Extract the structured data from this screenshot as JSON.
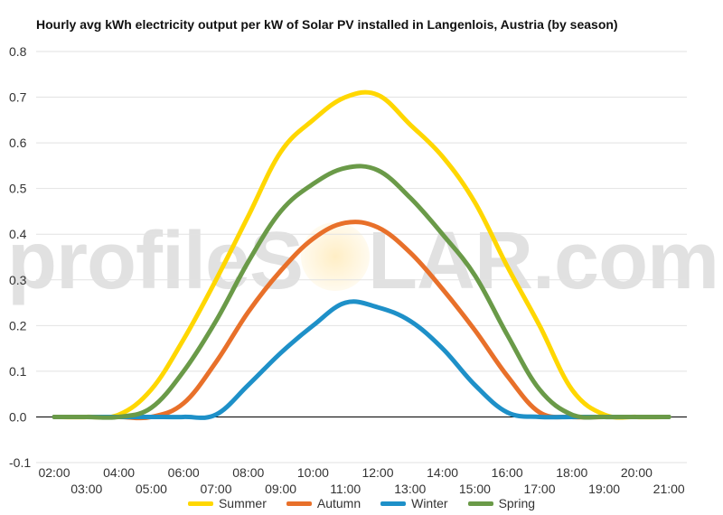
{
  "title": "Hourly avg kWh electricity output per kW of Solar PV installed in Langenlois, Austria (by season)",
  "watermark": {
    "left": "profileS",
    "right": "LAR.com"
  },
  "chart_data": {
    "type": "line",
    "title": "Hourly avg kWh electricity output per kW of Solar PV installed in Langenlois, Austria (by season)",
    "xlabel": "",
    "ylabel": "",
    "ylim": [
      -0.1,
      0.8
    ],
    "yticks": [
      "-0.1",
      "0.0",
      "0.1",
      "0.2",
      "0.3",
      "0.4",
      "0.5",
      "0.6",
      "0.7",
      "0.8"
    ],
    "x": [
      "02:00",
      "03:00",
      "04:00",
      "05:00",
      "06:00",
      "07:00",
      "08:00",
      "09:00",
      "10:00",
      "11:00",
      "12:00",
      "13:00",
      "14:00",
      "15:00",
      "16:00",
      "17:00",
      "18:00",
      "19:00",
      "20:00",
      "21:00"
    ],
    "grid": true,
    "legend": "bottom",
    "series": [
      {
        "name": "Summer",
        "color": "#FFD700",
        "values": [
          0,
          0,
          0.005,
          0.06,
          0.17,
          0.3,
          0.44,
          0.58,
          0.65,
          0.7,
          0.705,
          0.64,
          0.57,
          0.47,
          0.33,
          0.2,
          0.06,
          0.005,
          0,
          0
        ]
      },
      {
        "name": "Autumn",
        "color": "#E8702A",
        "values": [
          0,
          0,
          0,
          0,
          0.03,
          0.12,
          0.23,
          0.32,
          0.39,
          0.425,
          0.415,
          0.36,
          0.28,
          0.19,
          0.09,
          0.01,
          0,
          0,
          0,
          0
        ]
      },
      {
        "name": "Winter",
        "color": "#1E90C8",
        "values": [
          0,
          0,
          0,
          0,
          0,
          0.005,
          0.07,
          0.14,
          0.2,
          0.25,
          0.24,
          0.21,
          0.15,
          0.07,
          0.01,
          0,
          0,
          0,
          0,
          0
        ]
      },
      {
        "name": "Spring",
        "color": "#6A9A48",
        "values": [
          0,
          0,
          0,
          0.02,
          0.1,
          0.21,
          0.34,
          0.45,
          0.51,
          0.545,
          0.54,
          0.48,
          0.4,
          0.31,
          0.18,
          0.06,
          0.005,
          0,
          0,
          0
        ]
      }
    ]
  }
}
